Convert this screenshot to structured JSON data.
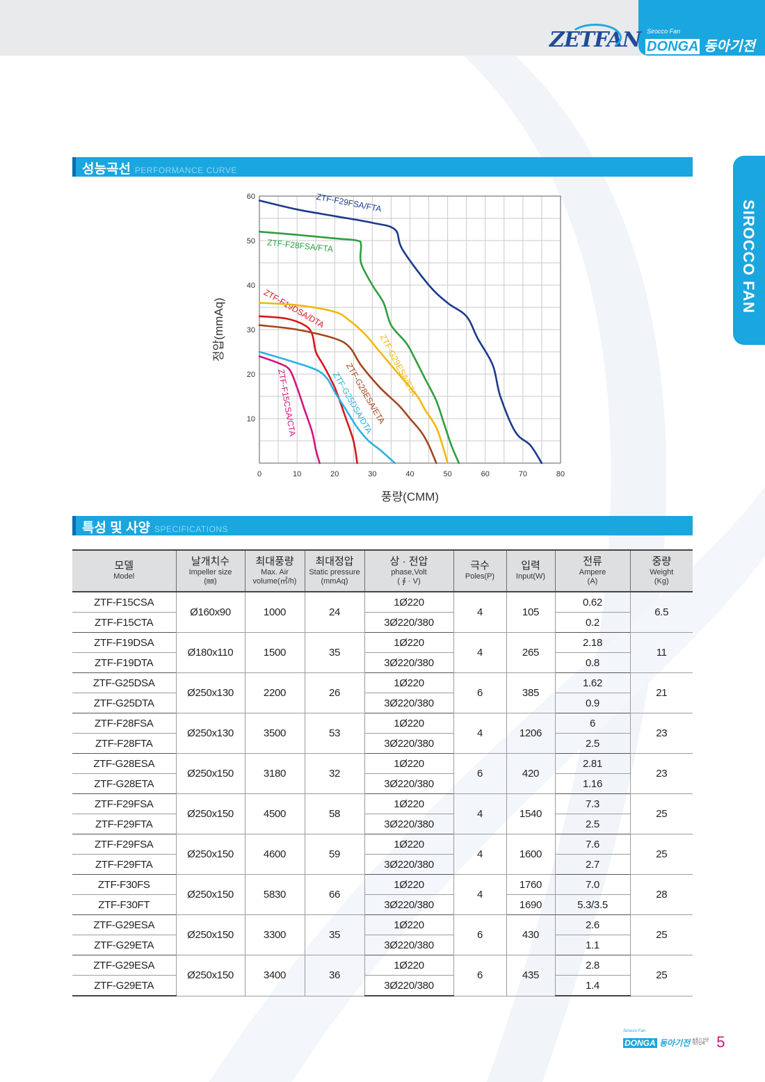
{
  "header": {
    "brand": "ZETFAN",
    "brand_small": "Sirocco Fan",
    "company_en": "DONGA",
    "company_ko": "동아기전",
    "side_tab": "SIROCCO FAN"
  },
  "sections": {
    "perf": {
      "ko": "성능곡선",
      "en": "PERFORMANCE CURVE"
    },
    "spec": {
      "ko": "특성 및 사양",
      "en": "SPECIFICATIONS"
    }
  },
  "chart_data": {
    "type": "line",
    "xlabel": "풍량(CMM)",
    "ylabel": "정압(mmAq)",
    "xlim": [
      0,
      80
    ],
    "ylim": [
      0,
      60
    ],
    "xticks": [
      0,
      10,
      20,
      30,
      40,
      50,
      60,
      70,
      80
    ],
    "yticks": [
      10,
      20,
      30,
      40,
      50,
      60
    ],
    "grid": true,
    "series": [
      {
        "name": "ZTF-F29FSA/FTA",
        "color": "#1b3a8c",
        "points": [
          [
            0,
            59
          ],
          [
            10,
            57
          ],
          [
            20,
            55.5
          ],
          [
            30,
            54
          ],
          [
            36,
            52.5
          ],
          [
            38,
            48
          ],
          [
            45,
            40
          ],
          [
            50,
            36
          ],
          [
            55,
            33
          ],
          [
            58,
            28
          ],
          [
            62,
            22
          ],
          [
            64,
            15
          ],
          [
            68,
            7
          ],
          [
            72,
            4
          ],
          [
            75,
            0
          ]
        ]
      },
      {
        "name": "ZTF-F28FSA/FTA",
        "color": "#2e9e3e",
        "points": [
          [
            0,
            52
          ],
          [
            10,
            51.3
          ],
          [
            20,
            50.5
          ],
          [
            26,
            50
          ],
          [
            27,
            49
          ],
          [
            27,
            45
          ],
          [
            30,
            40
          ],
          [
            33,
            36
          ],
          [
            35,
            31
          ],
          [
            39,
            27
          ],
          [
            41,
            24
          ],
          [
            44,
            19
          ],
          [
            47,
            14
          ],
          [
            49,
            9
          ],
          [
            51,
            4
          ],
          [
            53,
            0
          ]
        ]
      },
      {
        "name": "ZTF-F19DSA/DTA",
        "color": "#d4191c",
        "points": [
          [
            0,
            33
          ],
          [
            7,
            32.5
          ],
          [
            12,
            31
          ],
          [
            14,
            29
          ],
          [
            15,
            25
          ],
          [
            17,
            22
          ],
          [
            20,
            17
          ],
          [
            23,
            10
          ],
          [
            25,
            5
          ],
          [
            26,
            0
          ]
        ]
      },
      {
        "name": "ZTF-G29ESA/ETA",
        "color": "#f2b80a",
        "points": [
          [
            0,
            36
          ],
          [
            10,
            35.5
          ],
          [
            20,
            34
          ],
          [
            24,
            32
          ],
          [
            28,
            29
          ],
          [
            32,
            25
          ],
          [
            37,
            20
          ],
          [
            42,
            15
          ],
          [
            44,
            12
          ],
          [
            47,
            8
          ],
          [
            49,
            3
          ],
          [
            50,
            0
          ]
        ]
      },
      {
        "name": "ZTF-G28ESA/ETA",
        "color": "#a4461c",
        "points": [
          [
            0,
            31
          ],
          [
            10,
            30
          ],
          [
            20,
            28
          ],
          [
            24,
            26
          ],
          [
            27,
            22
          ],
          [
            32,
            17
          ],
          [
            37,
            13
          ],
          [
            40,
            10
          ],
          [
            43,
            7
          ],
          [
            45,
            4
          ],
          [
            47,
            0
          ]
        ]
      },
      {
        "name": "ZTF-G25DSA/DTA",
        "color": "#2bb0e2",
        "points": [
          [
            0,
            25
          ],
          [
            8,
            23
          ],
          [
            15,
            21
          ],
          [
            18,
            19
          ],
          [
            20,
            16
          ],
          [
            23,
            12
          ],
          [
            26,
            8
          ],
          [
            29,
            5
          ],
          [
            32,
            3
          ],
          [
            36,
            0
          ]
        ]
      },
      {
        "name": "ZTF-F15CSA/CTA",
        "color": "#d6137e",
        "points": [
          [
            0,
            24
          ],
          [
            5,
            22.5
          ],
          [
            8,
            21
          ],
          [
            10,
            17
          ],
          [
            12,
            12
          ],
          [
            14,
            7
          ],
          [
            15,
            3
          ],
          [
            16,
            0
          ]
        ]
      }
    ]
  },
  "table": {
    "headers": [
      {
        "ko": "모델",
        "en": "Model"
      },
      {
        "ko": "날개치수",
        "en": "Impeller size",
        "en2": "(㎜)"
      },
      {
        "ko": "최대풍량",
        "en": "Max. Air",
        "en2": "volume(㎥/h)"
      },
      {
        "ko": "최대정압",
        "en": "Static pressure",
        "en2": "(mmAq)"
      },
      {
        "ko": "상 · 전압",
        "en": "phase,Volt",
        "en2": "( ∮ · V)"
      },
      {
        "ko": "극수",
        "en": "Poles(P)"
      },
      {
        "ko": "입력",
        "en": "Input(W)"
      },
      {
        "ko": "전류",
        "en": "Ampere",
        "en2": "(A)"
      },
      {
        "ko": "중량",
        "en": "Weight",
        "en2": "(Kg)"
      }
    ],
    "groups": [
      {
        "models": [
          "ZTF-F15CSA",
          "ZTF-F15CTA"
        ],
        "impeller": "Ø160x90",
        "air": "1000",
        "pressure": "24",
        "phase": [
          "1Ø220",
          "3Ø220/380"
        ],
        "poles": "4",
        "input": "105",
        "ampere": [
          "0.62",
          "0.2"
        ],
        "weight": "6.5"
      },
      {
        "models": [
          "ZTF-F19DSA",
          "ZTF-F19DTA"
        ],
        "impeller": "Ø180x110",
        "air": "1500",
        "pressure": "35",
        "phase": [
          "1Ø220",
          "3Ø220/380"
        ],
        "poles": "4",
        "input": "265",
        "ampere": [
          "2.18",
          "0.8"
        ],
        "weight": "11"
      },
      {
        "models": [
          "ZTF-G25DSA",
          "ZTF-G25DTA"
        ],
        "impeller": "Ø250x130",
        "air": "2200",
        "pressure": "26",
        "phase": [
          "1Ø220",
          "3Ø220/380"
        ],
        "poles": "6",
        "input": "385",
        "ampere": [
          "1.62",
          "0.9"
        ],
        "weight": "21"
      },
      {
        "models": [
          "ZTF-F28FSA",
          "ZTF-F28FTA"
        ],
        "impeller": "Ø250x130",
        "air": "3500",
        "pressure": "53",
        "phase": [
          "1Ø220",
          "3Ø220/380"
        ],
        "poles": "4",
        "input": "1206",
        "ampere": [
          "6",
          "2.5"
        ],
        "weight": "23"
      },
      {
        "models": [
          "ZTF-G28ESA",
          "ZTF-G28ETA"
        ],
        "impeller": "Ø250x150",
        "air": "3180",
        "pressure": "32",
        "phase": [
          "1Ø220",
          "3Ø220/380"
        ],
        "poles": "6",
        "input": "420",
        "ampere": [
          "2.81",
          "1.16"
        ],
        "weight": "23"
      },
      {
        "models": [
          "ZTF-F29FSA",
          "ZTF-F29FTA"
        ],
        "impeller": "Ø250x150",
        "air": "4500",
        "pressure": "58",
        "phase": [
          "1Ø220",
          "3Ø220/380"
        ],
        "poles": "4",
        "input": "1540",
        "ampere": [
          "7.3",
          "2.5"
        ],
        "weight": "25"
      },
      {
        "models": [
          "ZTF-F29FSA",
          "ZTF-F29FTA"
        ],
        "impeller": "Ø250x150",
        "air": "4600",
        "pressure": "59",
        "phase": [
          "1Ø220",
          "3Ø220/380"
        ],
        "poles": "4",
        "input": "1600",
        "ampere": [
          "7.6",
          "2.7"
        ],
        "weight": "25"
      },
      {
        "models": [
          "ZTF-F30FS",
          "ZTF-F30FT"
        ],
        "impeller": "Ø250x150",
        "air": "5830",
        "pressure": "66",
        "phase": [
          "1Ø220",
          "3Ø220/380"
        ],
        "poles": "4",
        "input": [
          "1760",
          "1690"
        ],
        "ampere": [
          "7.0",
          "5.3/3.5"
        ],
        "weight": "28"
      },
      {
        "models": [
          "ZTF-G29ESA",
          "ZTF-G29ETA"
        ],
        "impeller": "Ø250x150",
        "air": "3300",
        "pressure": "35",
        "phase": [
          "1Ø220",
          "3Ø220/380"
        ],
        "poles": "6",
        "input": "430",
        "ampere": [
          "2.6",
          "1.1"
        ],
        "weight": "25"
      },
      {
        "models": [
          "ZTF-G29ESA",
          "ZTF-G29ETA"
        ],
        "impeller": "Ø250x150",
        "air": "3400",
        "pressure": "36",
        "phase": [
          "1Ø220",
          "3Ø220/380"
        ],
        "poles": "6",
        "input": "435",
        "ampere": [
          "2.8",
          "1.4"
        ],
        "weight": "25"
      }
    ]
  },
  "footer": {
    "small": "Sirocco Fan",
    "company_en": "DONGA",
    "company_ko": "동아기전",
    "tagline": "송풍기 전문 생산업체",
    "page": "5"
  }
}
